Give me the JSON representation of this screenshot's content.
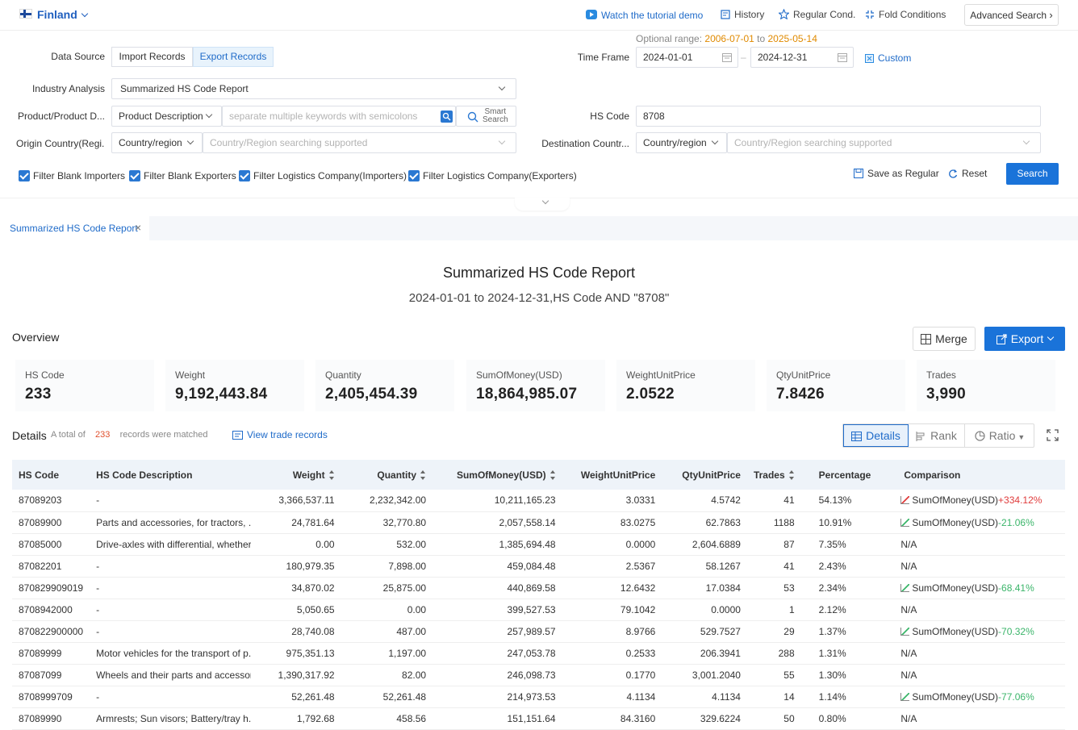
{
  "header": {
    "country": "Finland",
    "tutorial": "Watch the tutorial demo",
    "history": "History",
    "regular_cond": "Regular Cond.",
    "fold_conditions": "Fold Conditions",
    "advanced_search": "Advanced Search"
  },
  "form": {
    "optional_range_label": "Optional range:",
    "optional_from": "2006-07-01",
    "optional_to_word": "to",
    "optional_to": "2025-05-14",
    "data_source_label": "Data Source",
    "import_records": "Import Records",
    "export_records": "Export Records",
    "time_frame_label": "Time Frame",
    "date_from": "2024-01-01",
    "date_to": "2024-12-31",
    "custom": "Custom",
    "industry_label": "Industry Analysis",
    "industry_value": "Summarized HS Code Report",
    "product_label": "Product/Product D...",
    "product_select": "Product Description",
    "product_placeholder": "separate multiple keywords with semicolons",
    "smart_search": [
      "Smart",
      "Search"
    ],
    "hs_label": "HS Code",
    "hs_value": "8708",
    "origin_label": "Origin Country(Regi...",
    "origin_select": "Country/region",
    "origin_placeholder": "Country/Region searching supported",
    "dest_label": "Destination Countr...",
    "dest_select": "Country/region",
    "dest_placeholder": "Country/Region searching supported",
    "filters": [
      "Filter Blank Importers",
      "Filter Blank Exporters",
      "Filter Logistics Company(Importers)",
      "Filter Logistics Company(Exporters)"
    ],
    "save_regular": "Save as Regular",
    "reset": "Reset",
    "search": "Search"
  },
  "tab": {
    "label": "Summarized HS Code Report"
  },
  "report": {
    "title": "Summarized HS Code Report",
    "subtitle": "2024-01-01 to 2024-12-31,HS Code AND \"8708\""
  },
  "overview": {
    "label": "Overview",
    "merge": "Merge",
    "export": "Export",
    "stats": [
      {
        "title": "HS Code",
        "value": "233"
      },
      {
        "title": "Weight",
        "value": "9,192,443.84"
      },
      {
        "title": "Quantity",
        "value": "2,405,454.39"
      },
      {
        "title": "SumOfMoney(USD)",
        "value": "18,864,985.07"
      },
      {
        "title": "WeightUnitPrice",
        "value": "2.0522"
      },
      {
        "title": "QtyUnitPrice",
        "value": "7.8426"
      },
      {
        "title": "Trades",
        "value": "3,990"
      }
    ]
  },
  "details": {
    "label": "Details",
    "total_prefix": "A total of",
    "total_count": "233",
    "total_suffix": "records were matched",
    "view_trade": "View trade records",
    "view_details": "Details",
    "view_rank": "Rank",
    "view_ratio": "Ratio"
  },
  "table": {
    "headers": [
      "HS Code",
      "HS Code Description",
      "Weight",
      "Quantity",
      "SumOfMoney(USD)",
      "WeightUnitPrice",
      "QtyUnitPrice",
      "Trades",
      "Percentage",
      "Comparison"
    ],
    "rows": [
      [
        "87089203",
        "-",
        "3,366,537.11",
        "2,232,342.00",
        "10,211,165.23",
        "3.0331",
        "4.5742",
        "41",
        "54.13%",
        "SumOfMoney(USD)",
        "+334.12%"
      ],
      [
        "87089900",
        "Parts and accessories, for tractors, ...",
        "24,781.64",
        "32,770.80",
        "2,057,558.14",
        "83.0275",
        "62.7863",
        "1188",
        "10.91%",
        "SumOfMoney(USD)",
        "-21.06%"
      ],
      [
        "87085000",
        "Drive-axles with differential, whether...",
        "0.00",
        "532.00",
        "1,385,694.48",
        "0.0000",
        "2,604.6889",
        "87",
        "7.35%",
        "N/A",
        ""
      ],
      [
        "87082201",
        "-",
        "180,979.35",
        "7,898.00",
        "459,084.48",
        "2.5367",
        "58.1267",
        "41",
        "2.43%",
        "N/A",
        ""
      ],
      [
        "870829909019",
        "-",
        "34,870.02",
        "25,875.00",
        "440,869.58",
        "12.6432",
        "17.0384",
        "53",
        "2.34%",
        "SumOfMoney(USD)",
        "-68.41%"
      ],
      [
        "8708942000",
        "-",
        "5,050.65",
        "0.00",
        "399,527.53",
        "79.1042",
        "0.0000",
        "1",
        "2.12%",
        "N/A",
        ""
      ],
      [
        "870822900000",
        "-",
        "28,740.08",
        "487.00",
        "257,989.57",
        "8.9766",
        "529.7527",
        "29",
        "1.37%",
        "SumOfMoney(USD)",
        "-70.32%"
      ],
      [
        "87089999",
        "Motor vehicles for the transport of p...",
        "975,351.13",
        "1,197.00",
        "247,053.78",
        "0.2533",
        "206.3941",
        "288",
        "1.31%",
        "N/A",
        ""
      ],
      [
        "87087099",
        "Wheels and their parts and accessor...",
        "1,390,317.92",
        "82.00",
        "246,098.73",
        "0.1770",
        "3,001.2040",
        "55",
        "1.30%",
        "N/A",
        ""
      ],
      [
        "8708999709",
        "-",
        "52,261.48",
        "52,261.48",
        "214,973.53",
        "4.1134",
        "4.1134",
        "14",
        "1.14%",
        "SumOfMoney(USD)",
        "-77.06%"
      ],
      [
        "87089990",
        "Armrests; Sun visors; Battery/tray h...",
        "1,792.68",
        "458.56",
        "151,151.64",
        "84.3160",
        "329.6224",
        "50",
        "0.80%",
        "N/A",
        ""
      ]
    ]
  },
  "colors": {
    "accent": "#1a73d9",
    "up": "#e03c3c",
    "down": "#3bb56a",
    "optional": "#e08a00"
  }
}
